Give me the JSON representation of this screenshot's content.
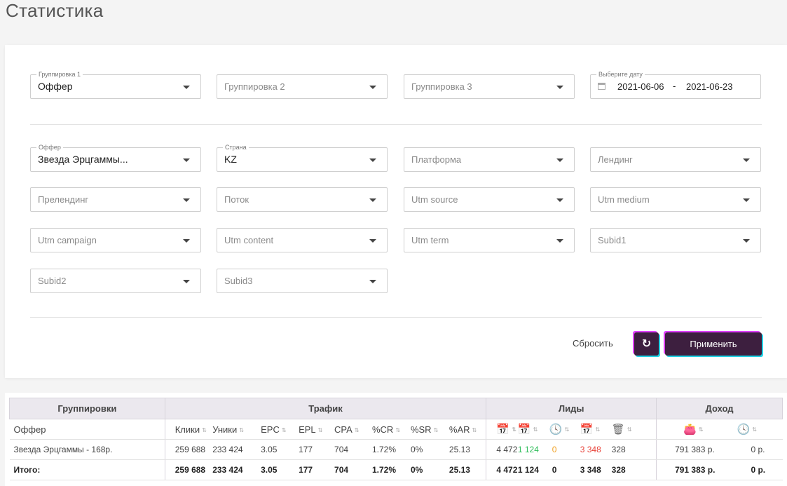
{
  "page": {
    "title": "Статистика"
  },
  "filters": {
    "group1": {
      "label": "Группировка 1",
      "value": "Оффер"
    },
    "group2": {
      "placeholder": "Группировка 2"
    },
    "group3": {
      "placeholder": "Группировка 3"
    },
    "date": {
      "label": "Выберите дату",
      "from": "2021-06-06",
      "separator": "-",
      "to": "2021-06-23"
    },
    "offer": {
      "label": "Оффер",
      "value": "Звезда Эрцгаммы..."
    },
    "country": {
      "label": "Страна",
      "value": "KZ"
    },
    "platform": {
      "placeholder": "Платформа"
    },
    "landing": {
      "placeholder": "Лендинг"
    },
    "prelanding": {
      "placeholder": "Прелендинг"
    },
    "stream": {
      "placeholder": "Поток"
    },
    "utm_source": {
      "placeholder": "Utm source"
    },
    "utm_medium": {
      "placeholder": "Utm medium"
    },
    "utm_campaign": {
      "placeholder": "Utm campaign"
    },
    "utm_content": {
      "placeholder": "Utm content"
    },
    "utm_term": {
      "placeholder": "Utm term"
    },
    "subid1": {
      "placeholder": "Subid1"
    },
    "subid2": {
      "placeholder": "Subid2"
    },
    "subid3": {
      "placeholder": "Subid3"
    }
  },
  "actions": {
    "reset_label": "Сбросить",
    "refresh_icon": "↻",
    "apply_label": "Применить"
  },
  "table": {
    "groups": {
      "grouping": "Группировки",
      "traffic": "Трафик",
      "leads": "Лиды",
      "income": "Доход"
    },
    "columns": {
      "offer": "Оффер",
      "clicks": "Клики",
      "uniques": "Уники",
      "epc": "EPC",
      "epl": "EPL",
      "cpa": "CPA",
      "cr": "%CR",
      "sr": "%SR",
      "ar": "%AR"
    },
    "lead_icons": [
      "calendar-plus-icon",
      "calendar-check-icon",
      "clock-icon",
      "calendar-cross-icon",
      "trash-icon"
    ],
    "income_icons": [
      "wallet-icon",
      "clock-icon"
    ],
    "sort_glyph": "⇅",
    "row": {
      "offer": "Звезда Эрцгаммы - 168р.",
      "clicks": "259 688",
      "uniques": "233 424",
      "epc": "3.05",
      "epl": "177",
      "cpa": "704",
      "cr": "1.72%",
      "sr": "0%",
      "ar": "25.13",
      "leads_total": "4 472",
      "leads_approved": "1 124",
      "leads_hold": "0",
      "leads_rejected": "3 348",
      "leads_trash": "328",
      "income_approved": "791 383 р.",
      "income_hold": "0 р."
    },
    "total": {
      "offer": "Итого:",
      "clicks": "259 688",
      "uniques": "233 424",
      "epc": "3.05",
      "epl": "177",
      "cpa": "704",
      "cr": "1.72%",
      "sr": "0%",
      "ar": "25.13",
      "leads_total": "4 472",
      "leads_approved": "1 124",
      "leads_hold": "0",
      "leads_rejected": "3 348",
      "leads_trash": "328",
      "income_approved": "791 383 р.",
      "income_hold": "0 р."
    }
  },
  "colors": {
    "accent": "#3d1f3f",
    "glow_pink": "#e040fb",
    "glow_cyan": "#22d3e6",
    "approved": "#2ebd59",
    "hold": "#f0a020",
    "rejected": "#e8433a"
  }
}
